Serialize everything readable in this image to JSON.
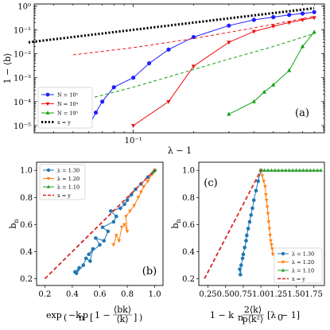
{
  "chart_data": [
    {
      "panel_label": "(a)",
      "type": "line",
      "xlabel": "λ − 1",
      "ylabel": "1 − ⟨b⟩",
      "xscale": "log",
      "yscale": "log",
      "xlim": [
        0.032,
        0.9
      ],
      "ylim": [
        5e-06,
        1.2
      ],
      "xticks": [
        {
          "value": 0.1,
          "label": "10⁻¹"
        }
      ],
      "yticks": [
        {
          "value": 1,
          "label": "10⁰"
        },
        {
          "value": 0.1,
          "label": "10⁻¹"
        },
        {
          "value": 0.01,
          "label": "10⁻²"
        },
        {
          "value": 0.001,
          "label": "10⁻³"
        },
        {
          "value": 0.0001,
          "label": "10⁻⁴"
        },
        {
          "value": 1e-05,
          "label": "10⁻⁵"
        }
      ],
      "legend_position": "lower-left",
      "series": [
        {
          "name": "N = 10⁵",
          "color": "#1f1fff",
          "marker": "circle",
          "style": "line-marker",
          "x": [
            0.06,
            0.065,
            0.07,
            0.08,
            0.1,
            0.12,
            0.15,
            0.2,
            0.3,
            0.4,
            0.5,
            0.6,
            0.7,
            0.8
          ],
          "y": [
            1e-05,
            3.5e-05,
            0.0001,
            0.0004,
            0.001,
            0.004,
            0.015,
            0.05,
            0.15,
            0.26,
            0.34,
            0.42,
            0.48,
            0.55
          ]
        },
        {
          "name": "N = 10⁴",
          "color": "#ee1111",
          "marker": "triangle-down",
          "style": "line-marker",
          "x": [
            0.1,
            0.15,
            0.2,
            0.3,
            0.4,
            0.5,
            0.6,
            0.7,
            0.8
          ],
          "y": [
            1e-05,
            0.0001,
            0.003,
            0.03,
            0.085,
            0.14,
            0.2,
            0.26,
            0.32
          ]
        },
        {
          "name": "N = 10⁵",
          "color": "#11a011",
          "marker": "triangle-up",
          "style": "line-marker",
          "x": [
            0.3,
            0.4,
            0.45,
            0.5,
            0.6,
            0.7,
            0.8
          ],
          "y": [
            3e-05,
            0.0001,
            0.00025,
            0.0005,
            0.002,
            0.02,
            0.08
          ]
        },
        {
          "name": "",
          "color": "#ee1111",
          "style": "dashed",
          "x": [
            0.05,
            0.1,
            0.2,
            0.4,
            0.8
          ],
          "y": [
            0.009,
            0.018,
            0.043,
            0.12,
            0.36
          ]
        },
        {
          "name": "",
          "color": "#11a011",
          "style": "dashed",
          "x": [
            0.05,
            0.1,
            0.2,
            0.3,
            0.5,
            0.8
          ],
          "y": [
            9e-05,
            0.0004,
            0.0022,
            0.006,
            0.02,
            0.07
          ]
        },
        {
          "name": "x = y",
          "color": "#000000",
          "style": "dotted",
          "x": [
            0.03,
            0.8
          ],
          "y": [
            0.03,
            0.8
          ]
        }
      ]
    },
    {
      "panel_label": "(b)",
      "type": "line",
      "xlabel_parts": [
        "exp",
        "−k",
        "n",
        "p",
        "1 −",
        "⟨bk⟩",
        "⟨k⟩"
      ],
      "ylabel": "b",
      "ylabel_sub": "n",
      "xlim": [
        0.14,
        1.06
      ],
      "ylim": [
        0.15,
        1.06
      ],
      "xticks": [
        0.2,
        0.4,
        0.6,
        0.8,
        1.0
      ],
      "xtick_labels": [
        "0.2",
        "0.4",
        "0.6",
        "0.8",
        "1.0"
      ],
      "yticks": [
        0.2,
        0.4,
        0.6,
        0.8,
        1.0
      ],
      "ytick_labels": [
        "0.2",
        "0.4",
        "0.6",
        "0.8",
        "1.0"
      ],
      "legend_position": "upper-left",
      "series": [
        {
          "name": "λ = 1.30",
          "color": "#1f77b4",
          "marker": "circle",
          "x": [
            0.42,
            0.45,
            0.43,
            0.48,
            0.5,
            0.53,
            0.55,
            0.52,
            0.6,
            0.57,
            0.63,
            0.66,
            0.62,
            0.7,
            0.72,
            0.68,
            0.75,
            0.78,
            0.8,
            0.83,
            0.86,
            0.9,
            0.95,
            1.0
          ],
          "y": [
            0.25,
            0.28,
            0.24,
            0.3,
            0.35,
            0.33,
            0.42,
            0.38,
            0.45,
            0.5,
            0.48,
            0.55,
            0.58,
            0.62,
            0.66,
            0.7,
            0.72,
            0.75,
            0.78,
            0.82,
            0.86,
            0.9,
            0.95,
            1.0
          ]
        },
        {
          "name": "λ = 1.20",
          "color": "#ff7f0e",
          "marker": "triangle-down",
          "x": [
            0.7,
            0.72,
            0.74,
            0.76,
            0.78,
            0.8,
            0.79,
            0.82,
            0.85,
            0.88,
            0.9,
            0.92,
            0.95,
            0.98,
            1.0
          ],
          "y": [
            0.45,
            0.52,
            0.48,
            0.58,
            0.6,
            0.55,
            0.66,
            0.7,
            0.74,
            0.8,
            0.84,
            0.88,
            0.92,
            0.97,
            1.0
          ]
        },
        {
          "name": "λ = 1.10",
          "color": "#2ca02c",
          "marker": "triangle-up",
          "x": [
            0.98,
            0.99,
            1.0
          ],
          "y": [
            0.98,
            0.99,
            1.0
          ]
        },
        {
          "name": "x = y",
          "color": "#d62728",
          "style": "dashed",
          "x": [
            0.2,
            1.0
          ],
          "y": [
            0.2,
            1.0
          ]
        }
      ]
    },
    {
      "panel_label": "(c)",
      "type": "line",
      "xlabel_parts": [
        "1 − k",
        "n",
        "2⟨k⟩",
        "p⟨k²⟩",
        "[λ",
        "0",
        " − 1]"
      ],
      "ylabel": "b",
      "ylabel_sub": "n",
      "xlim": [
        0.12,
        1.9
      ],
      "ylim": [
        0.15,
        1.06
      ],
      "xticks": [
        0.25,
        0.5,
        0.75,
        1.0,
        1.25,
        1.5,
        1.75
      ],
      "xtick_labels": [
        "0.25",
        "0.50",
        "0.75",
        "1.00",
        "1.25",
        "1.50",
        "1.75"
      ],
      "yticks": [
        0.2,
        0.4,
        0.6,
        0.8,
        1.0
      ],
      "ytick_labels": [
        "0.2",
        "0.4",
        "0.6",
        "0.8",
        "1.0"
      ],
      "legend_position": "lower-right",
      "series": [
        {
          "name": "λ = 1.30",
          "color": "#1f77b4",
          "marker": "circle",
          "x": [
            0.7,
            0.71,
            0.72,
            0.74,
            0.75,
            0.77,
            0.79,
            0.8,
            0.82,
            0.84,
            0.86,
            0.88,
            0.9,
            0.93,
            0.96,
            1.0
          ],
          "y": [
            0.27,
            0.23,
            0.3,
            0.35,
            0.38,
            0.43,
            0.48,
            0.52,
            0.57,
            0.62,
            0.67,
            0.72,
            0.78,
            0.85,
            0.92,
            1.0
          ]
        },
        {
          "name": "λ = 1.20",
          "color": "#ff7f0e",
          "marker": "triangle-down",
          "x": [
            1.0,
            1.02,
            1.04,
            1.06,
            1.07,
            1.08,
            1.09,
            1.1,
            1.11,
            1.12,
            1.13,
            1.14,
            1.15,
            1.16,
            1.17
          ],
          "y": [
            1.0,
            0.96,
            0.92,
            0.88,
            0.82,
            0.78,
            0.73,
            0.68,
            0.62,
            0.57,
            0.52,
            0.48,
            0.45,
            0.42,
            0.38
          ]
        },
        {
          "name": "λ = 1.10",
          "color": "#2ca02c",
          "marker": "triangle-up",
          "x": [
            1.0,
            1.05,
            1.1,
            1.15,
            1.2,
            1.25,
            1.3,
            1.35,
            1.4,
            1.45,
            1.5,
            1.55,
            1.6,
            1.65,
            1.7,
            1.75,
            1.8,
            1.85
          ],
          "y": [
            1.0,
            1.0,
            1.0,
            1.0,
            1.0,
            1.0,
            1.0,
            1.0,
            1.0,
            1.0,
            1.0,
            1.0,
            1.0,
            1.0,
            1.0,
            1.0,
            1.0,
            1.0
          ]
        },
        {
          "name": "x = y",
          "color": "#d62728",
          "style": "dashed",
          "x": [
            0.2,
            1.0
          ],
          "y": [
            0.2,
            1.0
          ]
        }
      ]
    }
  ]
}
